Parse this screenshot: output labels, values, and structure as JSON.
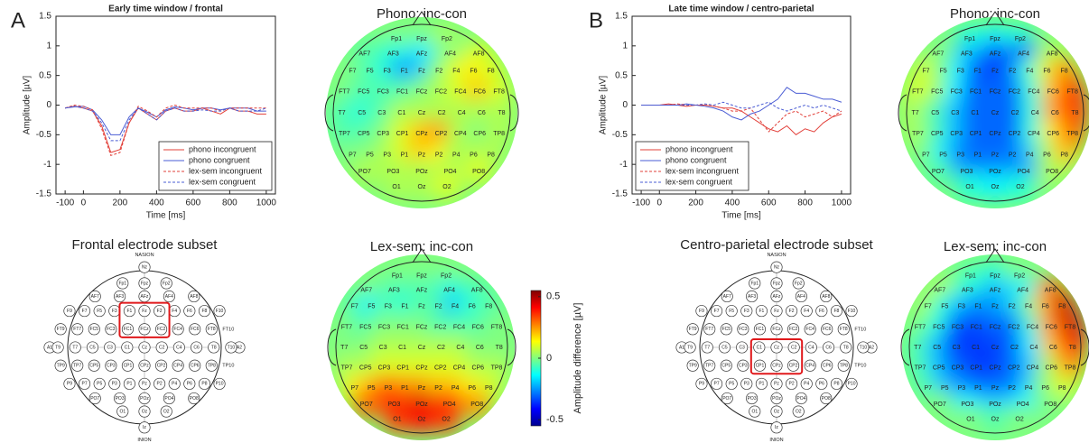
{
  "electrodes": [
    "Fp1",
    "Fpz",
    "Fp2",
    "AF7",
    "AF3",
    "AFz",
    "AF4",
    "AF8",
    "F7",
    "F5",
    "F3",
    "F1",
    "Fz",
    "F2",
    "F4",
    "F6",
    "F8",
    "FT7",
    "FC5",
    "FC3",
    "FC1",
    "FCz",
    "FC2",
    "FC4",
    "FC6",
    "FT8",
    "T7",
    "C5",
    "C3",
    "C1",
    "Cz",
    "C2",
    "C4",
    "C6",
    "T8",
    "TP7",
    "CP5",
    "CP3",
    "CP1",
    "CPz",
    "CP2",
    "CP4",
    "CP6",
    "TP8",
    "P7",
    "P5",
    "P3",
    "P1",
    "Pz",
    "P2",
    "P4",
    "P6",
    "P8",
    "PO7",
    "PO3",
    "POz",
    "PO4",
    "PO8",
    "O1",
    "Oz",
    "O2"
  ],
  "extra_electrodes": [
    "NASION",
    "Nz",
    "INION",
    "Iz",
    "A1",
    "A2",
    "T9",
    "T10",
    "F9",
    "F10",
    "FT9",
    "FT10",
    "TP9",
    "TP10",
    "P9",
    "P10"
  ],
  "chart_data": [
    {
      "type": "line",
      "panel_label": "A",
      "title": "Early time window / frontal",
      "xlabel": "Time [ms]",
      "ylabel": "Amplitude [µV]",
      "x": [
        -100,
        -50,
        0,
        50,
        100,
        150,
        200,
        250,
        300,
        350,
        400,
        450,
        500,
        550,
        600,
        650,
        700,
        750,
        800,
        850,
        900,
        950,
        1000
      ],
      "xlim": [
        -150,
        1050
      ],
      "xticks": [
        -100,
        0,
        200,
        400,
        600,
        800,
        1000
      ],
      "ylim": [
        -1.5,
        1.5
      ],
      "yticks": [
        -1.5,
        -1,
        -0.5,
        0,
        0.5,
        1,
        1.5
      ],
      "legend": "lower right",
      "series": [
        {
          "name": "phono incongruent",
          "color": "#e2403a",
          "dash": false,
          "values": [
            -0.05,
            -0.02,
            -0.05,
            -0.1,
            -0.35,
            -0.8,
            -0.75,
            -0.3,
            -0.05,
            -0.15,
            -0.25,
            -0.1,
            -0.05,
            -0.1,
            -0.1,
            -0.05,
            -0.1,
            -0.15,
            -0.05,
            -0.1,
            -0.1,
            -0.15,
            -0.15
          ]
        },
        {
          "name": "phono congruent",
          "color": "#4a5cd4",
          "dash": false,
          "values": [
            -0.05,
            -0.03,
            -0.02,
            -0.08,
            -0.25,
            -0.5,
            -0.5,
            -0.2,
            -0.05,
            -0.12,
            -0.2,
            -0.08,
            -0.03,
            -0.05,
            -0.08,
            -0.05,
            -0.05,
            -0.08,
            -0.05,
            -0.05,
            -0.05,
            -0.1,
            -0.1
          ]
        },
        {
          "name": "lex-sem incongruent",
          "color": "#e2403a",
          "dash": true,
          "values": [
            -0.05,
            0,
            -0.02,
            -0.08,
            -0.4,
            -0.85,
            -0.8,
            -0.3,
            -0.02,
            -0.1,
            -0.2,
            -0.05,
            0,
            -0.05,
            -0.05,
            -0.05,
            -0.05,
            -0.1,
            -0.05,
            -0.05,
            -0.05,
            -0.05,
            -0.05
          ]
        },
        {
          "name": "lex-sem congruent",
          "color": "#4a5cd4",
          "dash": true,
          "values": [
            -0.05,
            -0.02,
            -0.05,
            -0.1,
            -0.3,
            -0.6,
            -0.6,
            -0.25,
            -0.05,
            -0.15,
            -0.25,
            -0.1,
            -0.05,
            -0.1,
            -0.1,
            -0.08,
            -0.1,
            -0.1,
            -0.05,
            -0.1,
            -0.1,
            -0.1,
            -0.05
          ]
        }
      ]
    },
    {
      "type": "topomap",
      "title": "Phono: inc-con",
      "values": [
        0,
        0,
        0.05,
        -0.05,
        -0.1,
        -0.15,
        0,
        0.1,
        0,
        -0.05,
        -0.1,
        -0.25,
        -0.2,
        0,
        0.1,
        0.15,
        0.1,
        0,
        -0.05,
        -0.05,
        -0.05,
        0,
        0.05,
        0.1,
        0.2,
        0.1,
        -0.05,
        -0.1,
        -0.05,
        0.05,
        0.05,
        0.05,
        0.05,
        0.05,
        0.05,
        -0.05,
        -0.05,
        0,
        0.1,
        0.2,
        0.25,
        0.05,
        0,
        0.05,
        0,
        0,
        0.05,
        0.1,
        0.2,
        0.15,
        0.05,
        0.05,
        0.05,
        0.05,
        0.05,
        0.05,
        0.05,
        0.1,
        0.05,
        0.05,
        0.1
      ]
    },
    {
      "type": "electrode_layout",
      "title": "Frontal electrode subset",
      "highlight": [
        "F1",
        "Fz",
        "F2",
        "FC1",
        "FCz",
        "FC2"
      ]
    },
    {
      "type": "topomap",
      "title": "Lex-sem: inc-con",
      "values": [
        0,
        0,
        0,
        0,
        -0.05,
        -0.05,
        -0.1,
        -0.05,
        -0.05,
        -0.15,
        -0.05,
        -0.1,
        -0.05,
        -0.05,
        -0.2,
        -0.1,
        -0.05,
        0,
        -0.05,
        0,
        0,
        0,
        -0.05,
        -0.05,
        -0.05,
        0,
        0,
        0,
        0.05,
        0.05,
        0.05,
        0.05,
        0.05,
        0,
        0,
        0.05,
        0.05,
        0.1,
        0.1,
        0.1,
        0.1,
        0.1,
        0.05,
        0.05,
        0.15,
        0.2,
        0.3,
        0.25,
        0.25,
        0.2,
        0.2,
        0.15,
        0.1,
        0.3,
        0.4,
        0.45,
        0.4,
        0.25,
        0.35,
        0.4,
        0.35
      ]
    },
    {
      "type": "colorbar",
      "label": "Amplitude difference [µV]",
      "ylim": [
        -0.55,
        0.55
      ],
      "yticks": [
        -0.5,
        0,
        0.5
      ]
    },
    {
      "type": "line",
      "panel_label": "B",
      "title": "Late time window / centro-parietal",
      "xlabel": "Time [ms]",
      "ylabel": "Amplitude [µV]",
      "x": [
        -100,
        -50,
        0,
        50,
        100,
        150,
        200,
        250,
        300,
        350,
        400,
        450,
        500,
        550,
        600,
        650,
        700,
        750,
        800,
        850,
        900,
        950,
        1000
      ],
      "xlim": [
        -150,
        1050
      ],
      "xticks": [
        -100,
        0,
        200,
        400,
        600,
        800,
        1000
      ],
      "ylim": [
        -1.5,
        1.5
      ],
      "yticks": [
        -1.5,
        -1,
        -0.5,
        0,
        0.5,
        1,
        1.5
      ],
      "legend": "lower left",
      "series": [
        {
          "name": "phono incongruent",
          "color": "#e2403a",
          "dash": false,
          "values": [
            0,
            0,
            0,
            0.02,
            0,
            -0.02,
            0,
            0,
            -0.02,
            -0.05,
            -0.05,
            -0.1,
            -0.2,
            -0.3,
            -0.4,
            -0.45,
            -0.35,
            -0.5,
            -0.4,
            -0.45,
            -0.3,
            -0.2,
            -0.15
          ]
        },
        {
          "name": "phono congruent",
          "color": "#4a5cd4",
          "dash": false,
          "values": [
            0,
            0,
            0,
            0,
            0,
            0.02,
            0,
            -0.02,
            -0.05,
            -0.1,
            -0.2,
            -0.25,
            -0.15,
            -0.1,
            0,
            0.1,
            0.3,
            0.2,
            0.2,
            0.15,
            0.1,
            0.1,
            0.05
          ]
        },
        {
          "name": "lex-sem incongruent",
          "color": "#e2403a",
          "dash": true,
          "values": [
            0,
            0,
            0,
            0,
            0.02,
            0,
            0,
            0,
            -0.02,
            -0.05,
            -0.1,
            -0.1,
            -0.05,
            -0.25,
            -0.45,
            -0.3,
            -0.15,
            -0.1,
            -0.2,
            -0.15,
            -0.1,
            -0.2,
            -0.1
          ]
        },
        {
          "name": "lex-sem congruent",
          "color": "#4a5cd4",
          "dash": true,
          "values": [
            0,
            0,
            0,
            0,
            0,
            0,
            0,
            0.02,
            0,
            0.05,
            0,
            -0.05,
            -0.05,
            0,
            0.05,
            -0.05,
            -0.1,
            -0.05,
            0,
            -0.05,
            0,
            -0.05,
            -0.1
          ]
        }
      ]
    },
    {
      "type": "topomap",
      "title": "Phono: inc-con",
      "values": [
        -0.1,
        -0.15,
        -0.1,
        0,
        -0.2,
        -0.3,
        -0.3,
        0.05,
        0.1,
        0,
        -0.15,
        -0.3,
        -0.35,
        -0.3,
        -0.1,
        0.1,
        0.25,
        0.1,
        0.05,
        -0.15,
        -0.3,
        -0.3,
        -0.3,
        -0.1,
        0.2,
        0.35,
        0.05,
        -0.05,
        -0.2,
        -0.3,
        -0.3,
        -0.3,
        -0.1,
        0.25,
        0.35,
        0.05,
        -0.05,
        -0.2,
        -0.3,
        -0.3,
        -0.3,
        -0.1,
        0.15,
        0.3,
        0,
        -0.15,
        -0.25,
        -0.3,
        -0.3,
        -0.3,
        -0.2,
        0,
        0.2,
        -0.05,
        -0.25,
        -0.25,
        -0.25,
        0.05,
        -0.1,
        -0.15,
        -0.1
      ]
    },
    {
      "type": "electrode_layout",
      "title": "Centro-parietal electrode subset",
      "highlight": [
        "C1",
        "Cz",
        "C2",
        "CP1",
        "CPz",
        "CP2"
      ]
    },
    {
      "type": "topomap",
      "title": "Lex-sem: inc-con",
      "values": [
        -0.05,
        -0.1,
        0,
        0.05,
        -0.1,
        -0.2,
        -0.15,
        0.3,
        0.05,
        -0.1,
        -0.2,
        -0.25,
        -0.25,
        -0.2,
        -0.05,
        0.2,
        0.45,
        0,
        -0.1,
        -0.3,
        -0.35,
        -0.3,
        -0.3,
        -0.1,
        0.25,
        0.45,
        -0.05,
        -0.2,
        -0.35,
        -0.35,
        -0.35,
        -0.3,
        -0.15,
        0.2,
        0.4,
        -0.05,
        -0.2,
        -0.3,
        -0.35,
        -0.35,
        -0.3,
        -0.2,
        0.05,
        0.25,
        -0.05,
        -0.2,
        -0.25,
        -0.3,
        -0.3,
        -0.3,
        -0.2,
        0,
        0.1,
        0,
        -0.15,
        -0.2,
        -0.15,
        0,
        0,
        -0.05,
        0
      ]
    }
  ]
}
